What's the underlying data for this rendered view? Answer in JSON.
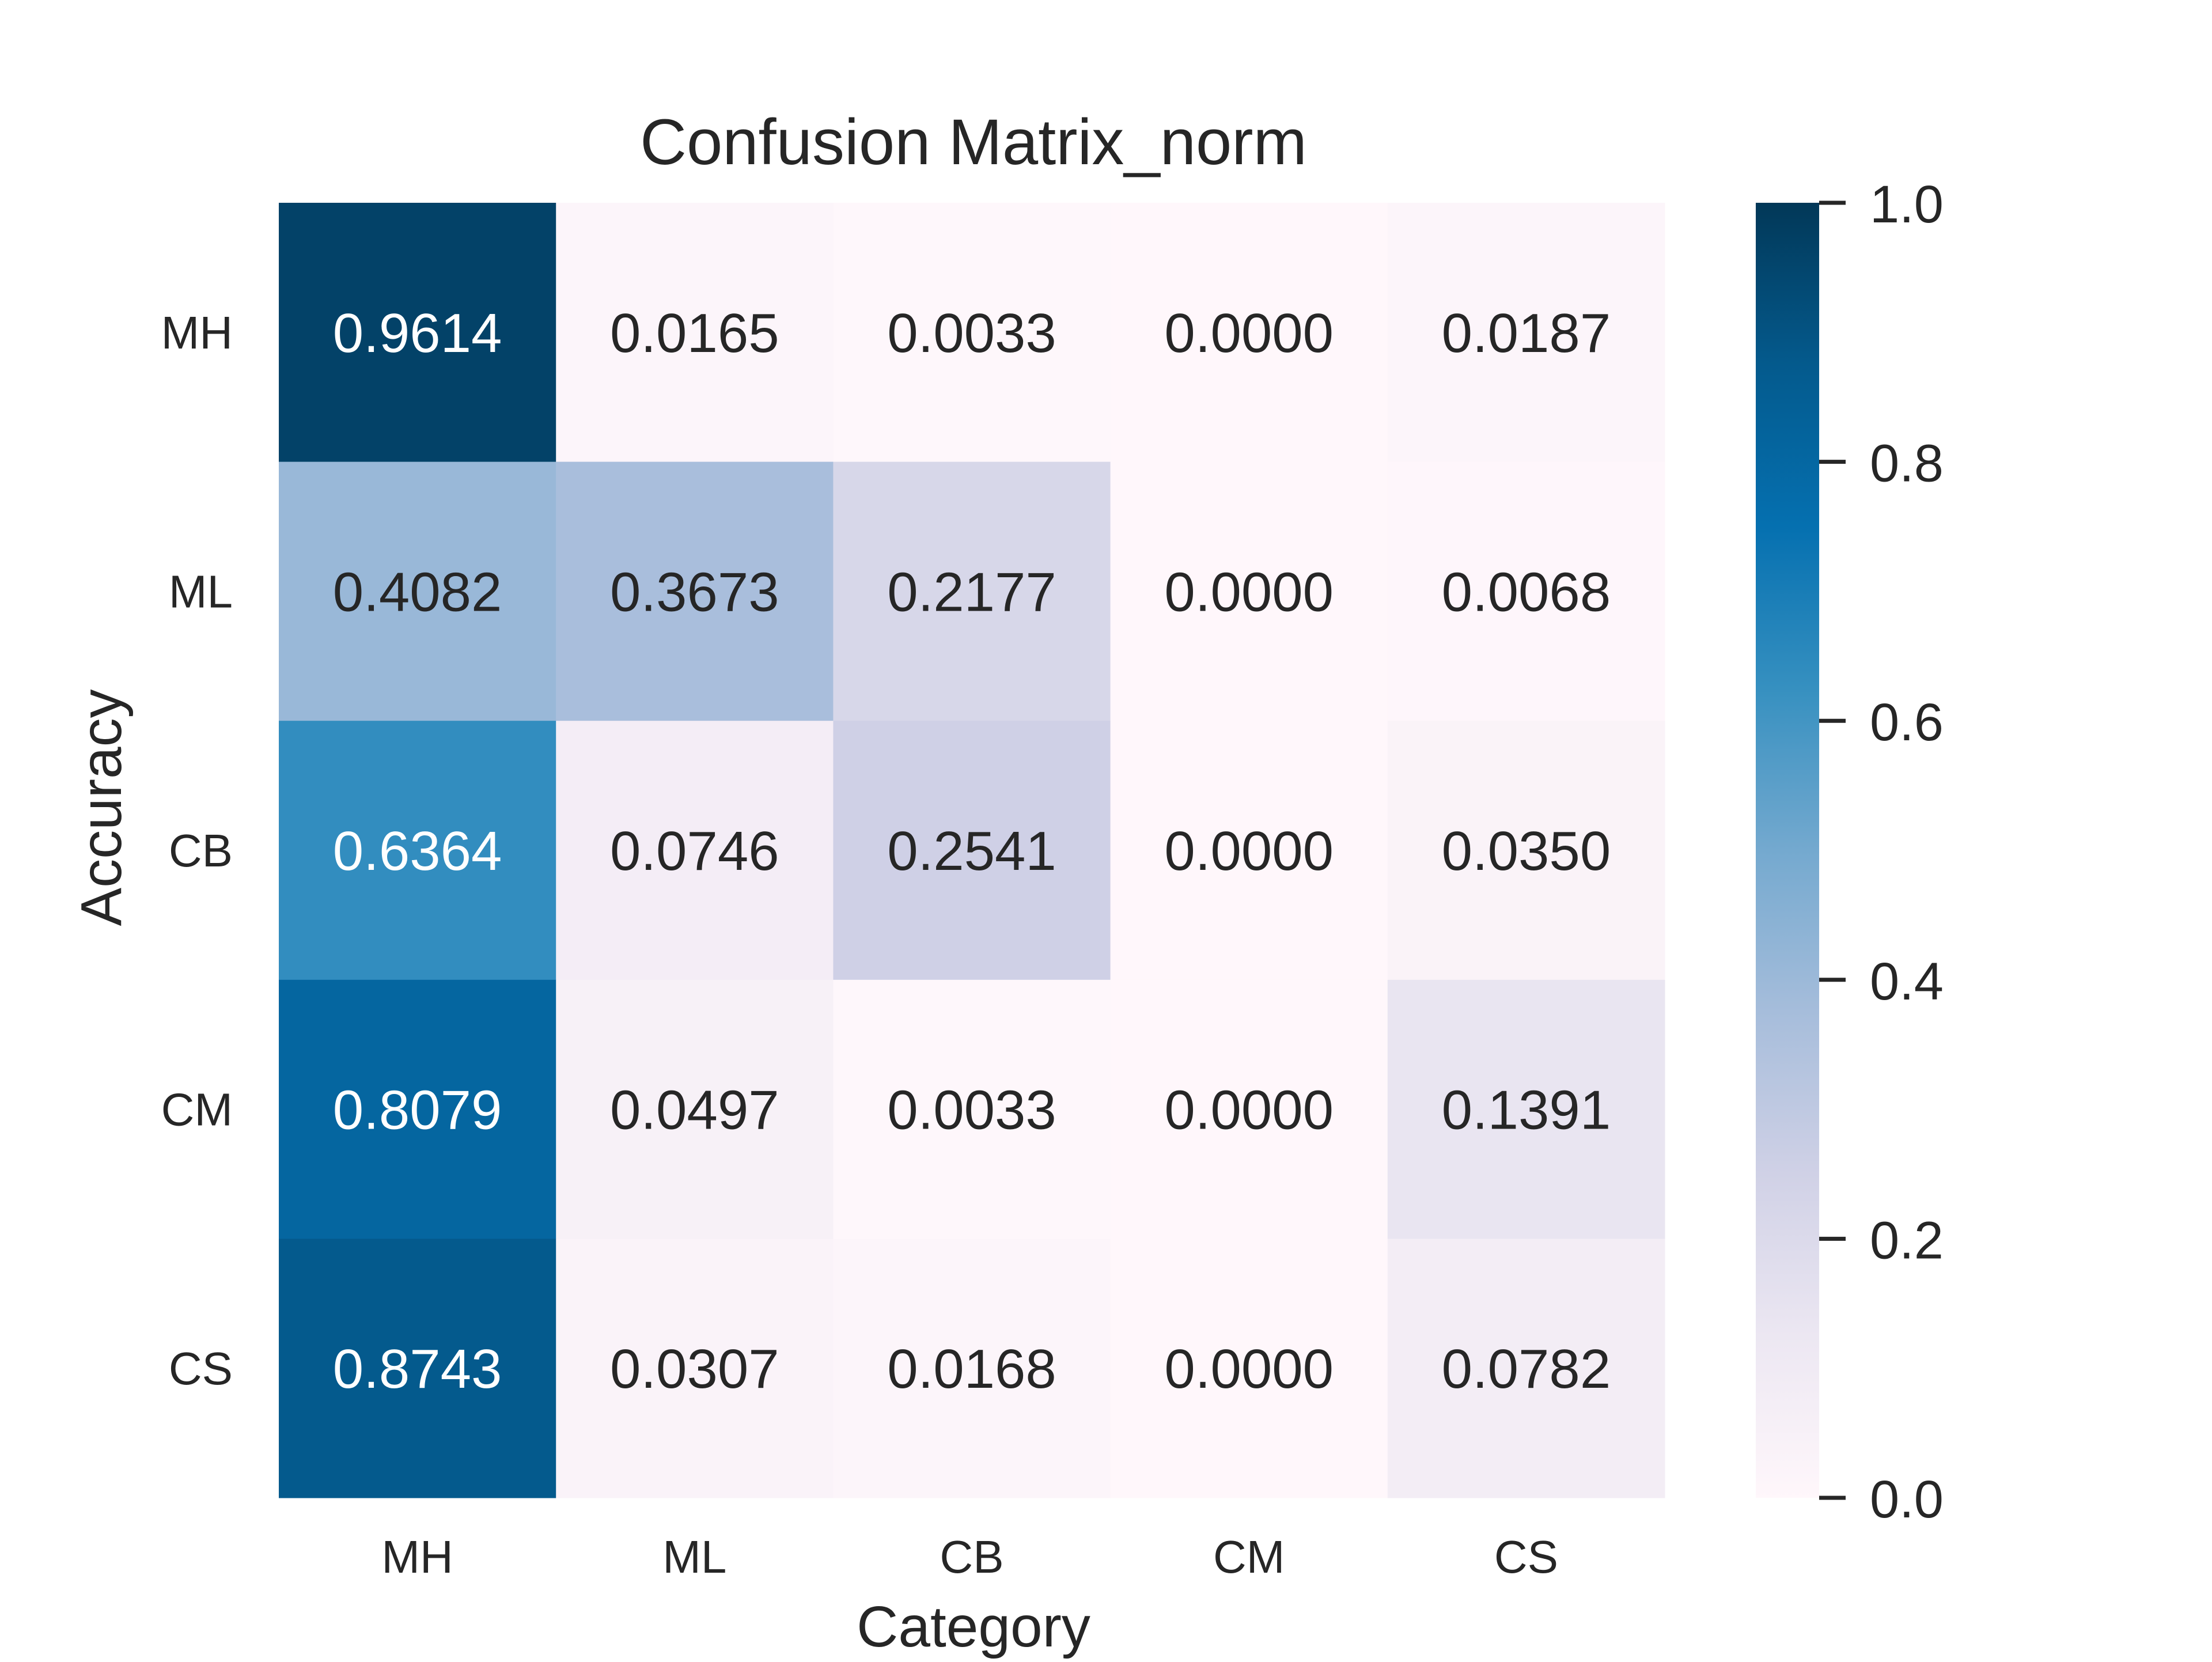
{
  "chart_data": {
    "type": "heatmap",
    "title": "Confusion Matrix_norm",
    "xlabel": "Category",
    "ylabel": "Accuracy",
    "x_categories": [
      "MH",
      "ML",
      "CB",
      "CM",
      "CS"
    ],
    "y_categories": [
      "MH",
      "ML",
      "CB",
      "CM",
      "CS"
    ],
    "values": [
      [
        0.9614,
        0.0165,
        0.0033,
        0.0,
        0.0187
      ],
      [
        0.4082,
        0.3673,
        0.2177,
        0.0,
        0.0068
      ],
      [
        0.6364,
        0.0746,
        0.2541,
        0.0,
        0.035
      ],
      [
        0.8079,
        0.0497,
        0.0033,
        0.0,
        0.1391
      ],
      [
        0.8743,
        0.0307,
        0.0168,
        0.0,
        0.0782
      ]
    ],
    "value_format": "0.0000",
    "colorbar": {
      "range": [
        0,
        1
      ],
      "ticks": [
        "0.0",
        "0.2",
        "0.4",
        "0.6",
        "0.8",
        "1.0"
      ],
      "colormap": "PuBu",
      "colors": [
        "#fff7fb",
        "#ece7f2",
        "#d0d1e6",
        "#a6bddb",
        "#74a9cf",
        "#3690c0",
        "#0570b0",
        "#045a8d",
        "#023858"
      ]
    },
    "grid": false,
    "legend": "colorbar-right"
  }
}
